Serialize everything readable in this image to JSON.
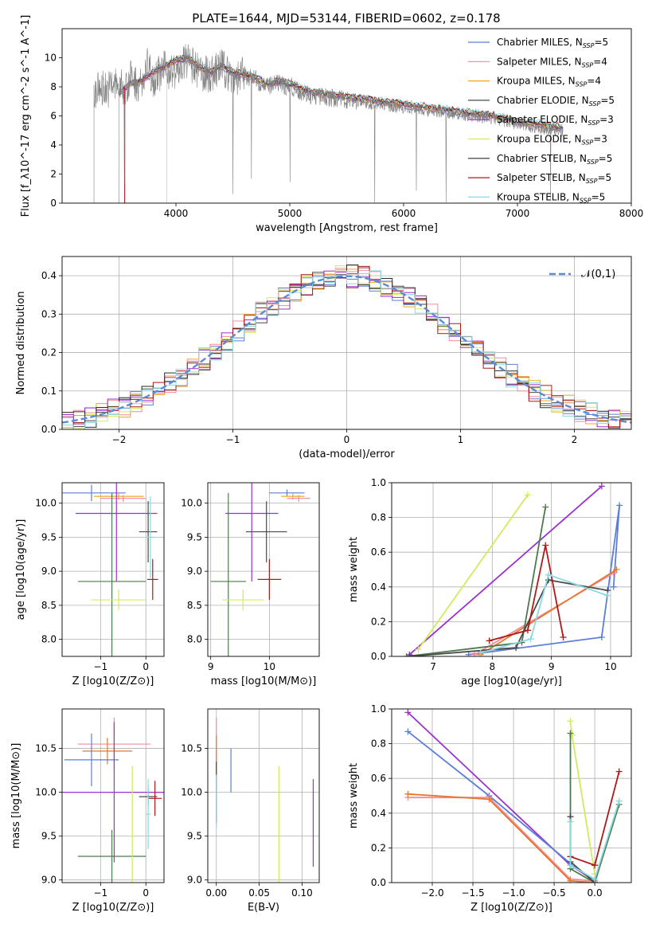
{
  "chart_data": [
    {
      "id": "spectrum",
      "type": "line",
      "title": "PLATE=1644, MJD=53144, FIBERID=0602, z=0.178",
      "xlabel": "wavelength [Angstrom, rest frame]",
      "ylabel": "Flux [f_λ10^-17 erg cm^-2 s^-1 A^-1]",
      "xlim": [
        3000,
        8000
      ],
      "ylim": [
        0,
        12
      ],
      "xticks": [
        4000,
        5000,
        6000,
        7000,
        8000
      ],
      "yticks": [
        0,
        2,
        4,
        6,
        8,
        10
      ],
      "legend": "top-right",
      "data_line": {
        "name": "",
        "color": "#808080",
        "x": [
          3280,
          3350,
          3400,
          3450,
          3500,
          3550,
          3600,
          3700,
          3750,
          3800,
          3900,
          4000,
          4100,
          4200,
          4300,
          4400,
          4500,
          4600,
          4700,
          4800,
          4900,
          5000,
          5200,
          5400,
          5600,
          5800,
          6000,
          6200,
          6400,
          6600,
          6800,
          7000,
          7200,
          7400
        ],
        "y": [
          7.5,
          8.0,
          7.8,
          8.2,
          8.0,
          7.8,
          8.6,
          8.0,
          9.5,
          8.6,
          9.2,
          9.0,
          9.8,
          9.0,
          8.8,
          9.4,
          8.6,
          8.8,
          8.5,
          8.0,
          8.2,
          8.0,
          7.4,
          7.2,
          7.0,
          6.8,
          6.6,
          6.4,
          6.2,
          6.0,
          5.8,
          5.4,
          5.2,
          5.0
        ]
      },
      "series": [
        {
          "name": "Chabrier MILES, N_SSP=5",
          "color": "#5b7fd6"
        },
        {
          "name": "Salpeter MILES, N_SSP=4",
          "color": "#f08c9e"
        },
        {
          "name": "Kroupa MILES, N_SSP=4",
          "color": "#f5a623"
        },
        {
          "name": "Chabrier ELODIE, N_SSP=5",
          "color": "#4a4a4a"
        },
        {
          "name": "Salpeter ELODIE, N_SSP=3",
          "color": "#9b30d0"
        },
        {
          "name": "Kroupa ELODIE, N_SSP=3",
          "color": "#d4ea5a"
        },
        {
          "name": "Chabrier STELIB, N_SSP=5",
          "color": "#2c2c2c"
        },
        {
          "name": "Salpeter STELIB, N_SSP=5",
          "color": "#b01818"
        },
        {
          "name": "Kroupa STELIB, N_SSP=5",
          "color": "#8ad9e0"
        }
      ],
      "model_x": [
        3500,
        3600,
        3700,
        3800,
        3900,
        4000,
        4100,
        4200,
        4300,
        4400,
        4500,
        4600,
        4700,
        4800,
        4900,
        5000,
        5200,
        5400,
        5600,
        5800,
        6000,
        6200,
        6400,
        6600,
        6800,
        7000,
        7200,
        7400
      ],
      "model_y": [
        7.6,
        8.2,
        8.4,
        9.0,
        9.4,
        9.8,
        10.0,
        9.4,
        9.0,
        9.4,
        9.0,
        8.8,
        8.6,
        8.2,
        8.4,
        8.2,
        7.6,
        7.4,
        7.2,
        7.0,
        6.8,
        6.6,
        6.4,
        6.2,
        6.0,
        5.6,
        5.4,
        5.2
      ],
      "model_start_x": [
        3500,
        3500,
        3550,
        3500,
        3550,
        3920,
        3500,
        3550,
        3500
      ]
    },
    {
      "id": "residuals",
      "type": "line",
      "title": "",
      "xlabel": "(data-model)/error",
      "ylabel": "Normed distribution",
      "xlim": [
        -2.5,
        2.5
      ],
      "ylim": [
        0,
        0.45
      ],
      "xticks": [
        -2,
        -1,
        0,
        1,
        2
      ],
      "yticks": [
        0.0,
        0.1,
        0.2,
        0.3,
        0.4
      ],
      "grid": true,
      "legend": "top-right",
      "curve": {
        "name": "𝒩(0,1)",
        "color": "#5b8bd6"
      }
    },
    {
      "id": "age-vs-Z",
      "type": "scatter",
      "xlabel": "Z [log10(Z/Z⊙)]",
      "ylabel": "age  [log10(age/yr)]",
      "xlim": [
        -1.85,
        0.4
      ],
      "ylim": [
        7.75,
        10.3
      ],
      "xticks": [
        -1,
        0
      ],
      "yticks": [
        8.0,
        8.5,
        9.0,
        9.5,
        10.0
      ],
      "grid": true,
      "points": [
        {
          "x": -1.2,
          "y": 10.15,
          "xerr": 0.75,
          "yerr": 0.12,
          "color": "#5b7fd6"
        },
        {
          "x": -0.6,
          "y": 10.1,
          "xerr": 0.55,
          "yerr": 0.05,
          "color": "#f5a623"
        },
        {
          "x": -0.5,
          "y": 10.07,
          "xerr": 0.5,
          "yerr": 0.05,
          "color": "#f08c9e"
        },
        {
          "x": -0.65,
          "y": 9.85,
          "xerr": 0.9,
          "yerr": 1.0,
          "color": "#9b30d0"
        },
        {
          "x": 0.05,
          "y": 9.58,
          "xerr": 0.2,
          "yerr": 0.45,
          "color": "#4a4a4a"
        },
        {
          "x": 0.1,
          "y": 9.5,
          "xerr": 0.1,
          "yerr": 0.6,
          "color": "#8ad9e0"
        },
        {
          "x": -0.75,
          "y": 8.85,
          "xerr": 0.75,
          "yerr": 1.3,
          "color": "#4c7a4c"
        },
        {
          "x": 0.15,
          "y": 8.88,
          "xerr": 0.12,
          "yerr": 0.3,
          "color": "#b01818"
        },
        {
          "x": -0.6,
          "y": 8.58,
          "xerr": 0.6,
          "yerr": 0.15,
          "color": "#d4ea5a"
        }
      ]
    },
    {
      "id": "age-vs-mass",
      "type": "scatter",
      "xlabel": "mass [log10(M/M⊙)]",
      "ylabel": "",
      "xlim": [
        8.95,
        10.85
      ],
      "ylim": [
        7.75,
        10.3
      ],
      "xticks": [
        9,
        10
      ],
      "yticks": [
        8.0,
        8.5,
        9.0,
        9.5,
        10.0
      ],
      "grid": true,
      "points": [
        {
          "x": 10.3,
          "y": 10.15,
          "xerr": 0.3,
          "yerr": 0.05,
          "color": "#5b7fd6"
        },
        {
          "x": 10.4,
          "y": 10.1,
          "xerr": 0.2,
          "yerr": 0.05,
          "color": "#f5a623"
        },
        {
          "x": 10.5,
          "y": 10.07,
          "xerr": 0.2,
          "yerr": 0.05,
          "color": "#f08c9e"
        },
        {
          "x": 9.7,
          "y": 9.85,
          "xerr": 0.45,
          "yerr": 1.0,
          "color": "#9b30d0"
        },
        {
          "x": 9.95,
          "y": 9.58,
          "xerr": 0.35,
          "yerr": 0.45,
          "color": "#4a4a4a"
        },
        {
          "x": 9.3,
          "y": 8.85,
          "xerr": 0.3,
          "yerr": 1.3,
          "color": "#4c7a4c"
        },
        {
          "x": 10.0,
          "y": 8.88,
          "xerr": 0.2,
          "yerr": 0.3,
          "color": "#b01818"
        },
        {
          "x": 9.55,
          "y": 8.58,
          "xerr": 0.35,
          "yerr": 0.15,
          "color": "#d4ea5a"
        }
      ]
    },
    {
      "id": "weight-vs-age",
      "type": "line",
      "xlabel": "age  [log10(age/yr)]",
      "ylabel": "mass weight",
      "xlim": [
        6.3,
        10.35
      ],
      "ylim": [
        0,
        1.0
      ],
      "xticks": [
        7,
        8,
        9,
        10
      ],
      "yticks": [
        0.0,
        0.2,
        0.4,
        0.6,
        0.8,
        1.0
      ],
      "grid": true,
      "series": [
        {
          "color": "#5b7fd6",
          "x": [
            7.6,
            9.85,
            10.15,
            10.05
          ],
          "y": [
            0.01,
            0.11,
            0.87,
            0.4
          ]
        },
        {
          "color": "#f08c9e",
          "x": [
            7.7,
            10.05
          ],
          "y": [
            0.01,
            0.48
          ]
        },
        {
          "color": "#e6772e",
          "x": [
            7.8,
            10.1
          ],
          "y": [
            0.01,
            0.5
          ]
        },
        {
          "color": "#9b30d0",
          "x": [
            6.6,
            9.85
          ],
          "y": [
            0.01,
            0.98
          ]
        },
        {
          "color": "#d4ea5a",
          "x": [
            6.75,
            8.6
          ],
          "y": [
            0.04,
            0.93
          ]
        },
        {
          "color": "#4c7a4c",
          "x": [
            6.55,
            8.5,
            8.9
          ],
          "y": [
            0.0,
            0.08,
            0.86
          ]
        },
        {
          "color": "#4a4a4a",
          "x": [
            6.6,
            8.4,
            8.95,
            9.95
          ],
          "y": [
            0.0,
            0.05,
            0.44,
            0.38
          ]
        },
        {
          "color": "#b01818",
          "x": [
            7.95,
            8.6,
            8.9,
            9.2
          ],
          "y": [
            0.09,
            0.15,
            0.64,
            0.11
          ]
        },
        {
          "color": "#8ad9e0",
          "x": [
            7.8,
            8.65,
            8.95,
            9.95
          ],
          "y": [
            0.02,
            0.1,
            0.47,
            0.35
          ]
        }
      ]
    },
    {
      "id": "mass-vs-Z",
      "type": "scatter",
      "xlabel": "Z [log10(Z/Z⊙)]",
      "ylabel": "mass [log10(M/M⊙)]",
      "xlim": [
        -1.85,
        0.4
      ],
      "ylim": [
        8.97,
        10.95
      ],
      "xticks": [
        -1,
        0
      ],
      "yticks": [
        9.0,
        9.5,
        10.0,
        10.5
      ],
      "grid": true,
      "points": [
        {
          "x": -0.7,
          "y": 10.55,
          "xerr": 0.8,
          "yerr": 0.3,
          "color": "#f08c9e"
        },
        {
          "x": -0.85,
          "y": 10.47,
          "xerr": 0.55,
          "yerr": 0.15,
          "color": "#e6772e"
        },
        {
          "x": -1.2,
          "y": 10.37,
          "xerr": 0.6,
          "yerr": 0.3,
          "color": "#5b7fd6"
        },
        {
          "x": -0.7,
          "y": 10.0,
          "xerr": 1.2,
          "yerr": 0.8,
          "color": "#9b30d0"
        },
        {
          "x": 0.05,
          "y": 9.95,
          "xerr": 0.2,
          "yerr": 0.1,
          "color": "#4a4a4a"
        },
        {
          "x": 0.2,
          "y": 9.93,
          "xerr": 0.15,
          "yerr": 0.2,
          "color": "#b01818"
        },
        {
          "x": 0.05,
          "y": 9.75,
          "xerr": 0.05,
          "yerr": 0.4,
          "color": "#8ad9e0"
        },
        {
          "x": -0.75,
          "y": 9.27,
          "xerr": 0.75,
          "yerr": 0.3,
          "color": "#4c7a4c"
        },
        {
          "x": -0.3,
          "y": 9.5,
          "xerr": 0.05,
          "yerr": 0.8,
          "color": "#d4ea5a"
        }
      ]
    },
    {
      "id": "mass-vs-EBV",
      "type": "scatter",
      "xlabel": "E(B-V)",
      "ylabel": "",
      "xlim": [
        -0.01,
        0.12
      ],
      "ylim": [
        8.97,
        10.95
      ],
      "xticks": [
        0.0,
        0.05,
        0.1
      ],
      "yticks": [
        9.0,
        9.5,
        10.0,
        10.5
      ],
      "grid": true,
      "points": [
        {
          "x": 0.0,
          "y": 10.55,
          "yerr": 0.3,
          "color": "#f08c9e"
        },
        {
          "x": 0.0,
          "y": 10.35,
          "yerr": 0.3,
          "color": "#e6772e"
        },
        {
          "x": 0.0,
          "y": 10.0,
          "yerr": 0.35,
          "color": "#4a4a4a"
        },
        {
          "x": 0.0,
          "y": 9.9,
          "yerr": 0.3,
          "color": "#8ad9e0"
        },
        {
          "x": 0.017,
          "y": 10.25,
          "yerr": 0.25,
          "color": "#5b7fd6"
        },
        {
          "x": 0.073,
          "y": 9.6,
          "yerr": 0.7,
          "color": "#d4ea5a"
        },
        {
          "x": 0.113,
          "y": 9.65,
          "yerr": 0.5,
          "color": "#9b30d0"
        }
      ]
    },
    {
      "id": "weight-vs-Z",
      "type": "line",
      "xlabel": "Z [log10(Z/Z⊙)]",
      "ylabel": "mass weight",
      "xlim": [
        -2.5,
        0.45
      ],
      "ylim": [
        0,
        1.0
      ],
      "xticks": [
        -2.0,
        -1.5,
        -1.0,
        -0.5,
        0.0
      ],
      "grid": true,
      "yticks": [
        0.0,
        0.2,
        0.4,
        0.6,
        0.8,
        1.0
      ],
      "series": [
        {
          "color": "#9b30d0",
          "x": [
            -2.3,
            -0.3,
            0.0
          ],
          "y": [
            0.98,
            0.1,
            0.01
          ]
        },
        {
          "color": "#5b7fd6",
          "x": [
            -2.3,
            -1.3,
            -0.3,
            0.0
          ],
          "y": [
            0.87,
            0.5,
            0.11,
            0.01
          ]
        },
        {
          "color": "#f08c9e",
          "x": [
            -2.3,
            -1.3,
            -0.3,
            0.0
          ],
          "y": [
            0.49,
            0.49,
            0.02,
            0.01
          ]
        },
        {
          "color": "#e6772e",
          "x": [
            -2.3,
            -1.3,
            -0.3,
            0.0
          ],
          "y": [
            0.51,
            0.48,
            0.01,
            0.0
          ]
        },
        {
          "color": "#d4ea5a",
          "x": [
            -0.3,
            -0.28,
            0.0
          ],
          "y": [
            0.93,
            0.85,
            0.05
          ]
        },
        {
          "color": "#4c7a4c",
          "x": [
            -0.3,
            -0.3,
            -0.3,
            0.0,
            0.3
          ],
          "y": [
            0.86,
            0.38,
            0.08,
            0.0,
            0.45
          ]
        },
        {
          "color": "#4a4a4a",
          "x": [
            -0.3,
            -0.3,
            0.0
          ],
          "y": [
            0.38,
            0.12,
            0.0
          ]
        },
        {
          "color": "#b01818",
          "x": [
            -0.3,
            0.0,
            0.3
          ],
          "y": [
            0.15,
            0.1,
            0.64
          ]
        },
        {
          "color": "#8ad9e0",
          "x": [
            -0.3,
            -0.3,
            0.0,
            0.3
          ],
          "y": [
            0.35,
            0.1,
            0.02,
            0.47
          ]
        }
      ]
    }
  ]
}
